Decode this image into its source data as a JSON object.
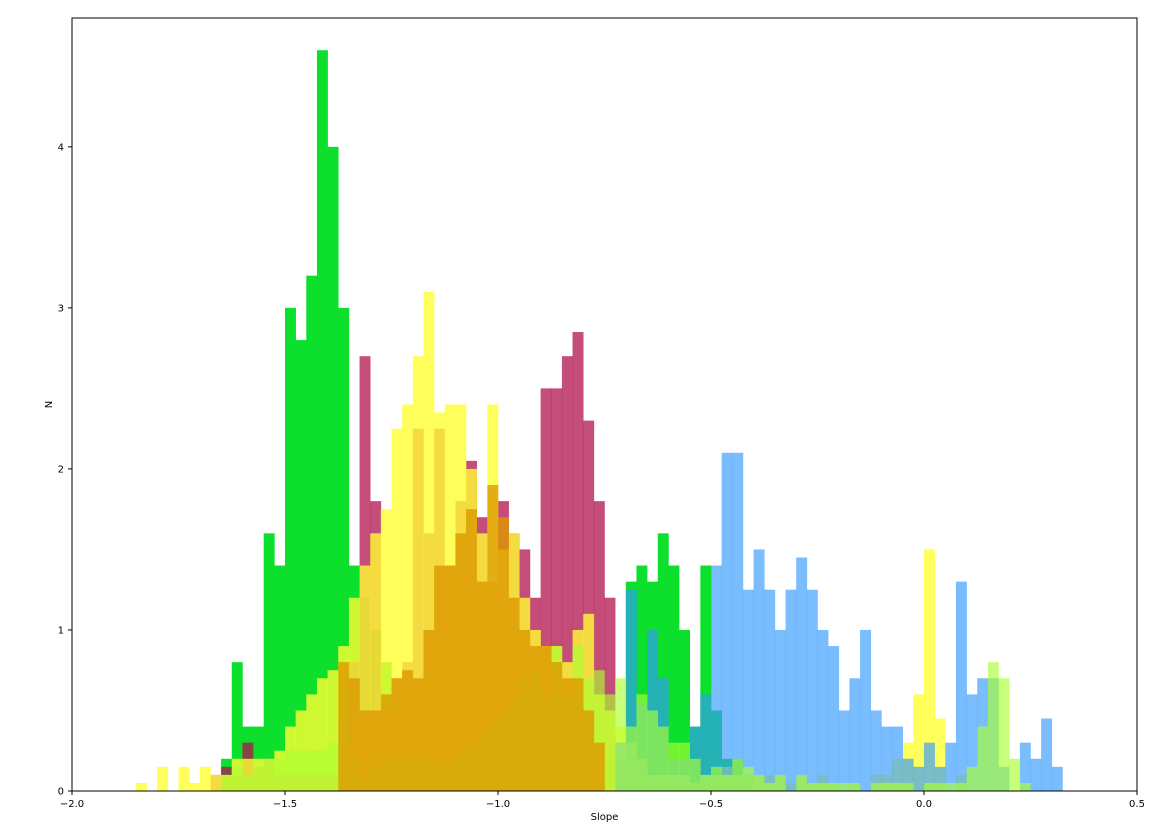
{
  "chart_data": {
    "type": "bar",
    "title": "",
    "xlabel": "Slope",
    "ylabel": "N",
    "xlim": [
      -2.0,
      0.5
    ],
    "ylim": [
      0,
      4.8
    ],
    "xticks": [
      -2.0,
      -1.5,
      -1.0,
      -0.5,
      0.0,
      0.5
    ],
    "xtick_labels": [
      "−2.0",
      "−1.5",
      "−1.0",
      "−0.5",
      "0.0",
      "0.5"
    ],
    "yticks": [
      0,
      1,
      2,
      3,
      4
    ],
    "ytick_labels": [
      "0",
      "1",
      "2",
      "3",
      "4"
    ],
    "grid": false,
    "legend": "none",
    "bin_width": 0.025,
    "series": [
      {
        "color": "#00dd22",
        "opacity": 0.95,
        "bin_start": -1.65,
        "values": [
          0.2,
          0.8,
          0.4,
          0.4,
          1.6,
          1.4,
          3.0,
          2.8,
          3.2,
          4.6,
          4.0,
          3.0,
          1.4,
          1.2,
          1.0,
          0.8,
          0.6,
          0.4,
          0.2,
          0.2,
          0.2,
          0.1,
          0.1,
          0.1,
          0.1,
          0.1,
          0.2,
          0.1,
          0.2,
          0.1,
          0.2,
          0.1,
          0.1,
          0.2,
          0.1,
          0.2,
          0.2,
          0.2,
          1.3,
          1.4,
          1.3,
          1.6,
          1.4,
          1.0,
          0.4,
          1.4,
          0.5,
          0.2,
          0.2,
          0.1
        ]
      },
      {
        "color": "#b0124e",
        "opacity": 0.75,
        "bin_start": -1.675,
        "values": [
          0.1,
          0.15,
          0.1,
          0.3,
          0.15,
          0.2,
          0.1,
          0.1,
          0.1,
          0.1,
          0.1,
          0.1,
          0.3,
          0.8,
          2.7,
          1.8,
          0.5,
          0.7,
          0.8,
          2.25,
          1.6,
          2.25,
          1.4,
          1.8,
          2.05,
          1.7,
          1.3,
          1.8,
          1.6,
          1.5,
          1.2,
          2.5,
          2.5,
          2.7,
          2.85,
          2.3,
          1.8,
          1.2
        ]
      },
      {
        "color": "#ffff33",
        "opacity": 0.8,
        "bin_start": -1.85,
        "values": [
          0.05,
          0.0,
          0.15,
          0.0,
          0.15,
          0.05,
          0.15,
          0.1,
          0.1,
          0.2,
          0.2,
          0.2,
          0.2,
          0.25,
          0.4,
          0.5,
          0.6,
          0.7,
          0.75,
          0.9,
          1.2,
          1.4,
          1.6,
          1.75,
          2.25,
          2.4,
          2.7,
          3.1,
          2.35,
          2.4,
          2.4,
          2.0,
          1.6,
          2.4,
          1.5,
          1.6,
          1.2,
          1.0,
          0.9,
          0.9,
          0.8,
          1.0,
          1.1,
          0.6,
          0.5,
          0.4,
          0.3,
          0.2,
          0.1,
          0.1,
          0.1,
          0.1,
          0.05,
          0.1,
          0.1,
          0.15,
          0.1,
          0.1,
          0.1,
          0.1,
          0.1,
          0.05,
          0.1,
          0.05,
          0.1,
          0.05,
          0.0,
          0.05,
          0.0,
          0.1,
          0.1,
          0.2,
          0.3,
          0.6,
          1.5,
          0.45,
          0.0,
          0.1
        ]
      },
      {
        "color": "#3399ff",
        "opacity": 0.65,
        "bin_start": -0.725,
        "values": [
          0.3,
          1.25,
          0.55,
          1.0,
          0.7,
          0.2,
          0.2,
          0.4,
          0.6,
          1.4,
          2.1,
          2.1,
          1.25,
          1.5,
          1.25,
          1.0,
          1.25,
          1.45,
          1.25,
          1.0,
          0.9,
          0.5,
          0.7,
          1.0,
          0.5,
          0.4,
          0.4,
          0.2,
          0.15,
          0.3,
          0.15,
          0.3,
          1.3,
          0.6,
          0.7,
          0.7,
          0.15,
          0.0,
          0.3,
          0.2,
          0.45,
          0.15
        ]
      },
      {
        "color": "#aaff33",
        "opacity": 0.65,
        "bin_start": -1.65,
        "values": [
          0.1,
          0.15,
          0.1,
          0.15,
          0.2,
          0.2,
          0.25,
          0.25,
          0.25,
          0.25,
          0.3,
          0.4,
          0.2,
          0.1,
          0.15,
          0.2,
          0.2,
          0.2,
          0.2,
          0.2,
          0.2,
          0.2,
          0.25,
          0.3,
          0.35,
          0.4,
          0.5,
          0.6,
          0.7,
          0.75,
          0.6,
          0.9,
          0.6,
          0.9,
          0.7,
          0.75,
          0.6,
          0.7,
          0.4,
          0.6,
          0.5,
          0.4,
          0.3,
          0.3,
          0.2,
          0.1,
          0.15,
          0.1,
          0.2,
          0.15,
          0.1,
          0.05,
          0.1,
          0.0,
          0.1,
          0.05,
          0.05,
          0.05,
          0.05,
          0.05,
          0.0,
          0.05,
          0.05,
          0.05,
          0.05,
          0.0,
          0.05,
          0.05,
          0.05,
          0.05,
          0.15,
          0.4,
          0.8,
          0.7,
          0.2,
          0.05
        ]
      },
      {
        "color": "#dd9900",
        "opacity": 0.8,
        "bin_start": -1.375,
        "values": [
          0.8,
          0.7,
          0.5,
          0.5,
          0.6,
          0.7,
          0.75,
          0.7,
          1.0,
          1.4,
          1.4,
          1.6,
          1.75,
          1.3,
          1.9,
          1.7,
          1.2,
          1.0,
          0.9,
          0.9,
          0.8,
          0.7,
          0.7,
          0.5,
          0.3
        ]
      }
    ]
  }
}
